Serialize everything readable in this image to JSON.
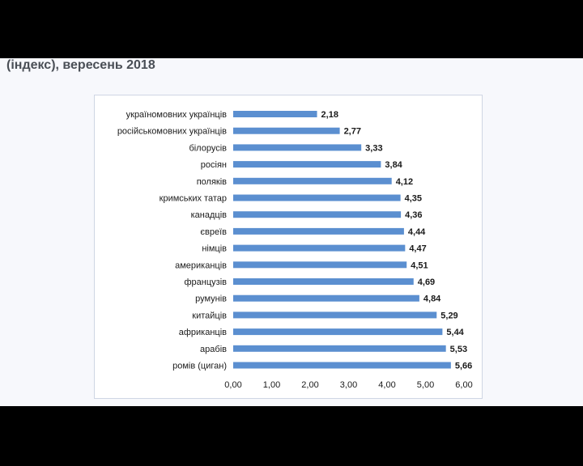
{
  "heading": "(індекс), вересень 2018",
  "colors": {
    "bar": "#5b8fd0",
    "background": "#f7f8fc",
    "letterbox": "#000000"
  },
  "chart_data": {
    "type": "bar",
    "orientation": "horizontal",
    "categories": [
      "україномовних українців",
      "російськомовних українців",
      "білорусів",
      "росіян",
      "поляків",
      "кримських татар",
      "канадців",
      "євреїв",
      "німців",
      "американців",
      "французів",
      "румунів",
      "китайців",
      "африканців",
      "арабів",
      "ромів (циган)"
    ],
    "values": [
      2.18,
      2.77,
      3.33,
      3.84,
      4.12,
      4.35,
      4.36,
      4.44,
      4.47,
      4.51,
      4.69,
      4.84,
      5.29,
      5.44,
      5.53,
      5.66
    ],
    "value_labels": [
      "2,18",
      "2,77",
      "3,33",
      "3,84",
      "4,12",
      "4,35",
      "4,36",
      "4,44",
      "4,47",
      "4,51",
      "4,69",
      "4,84",
      "5,29",
      "5,44",
      "5,53",
      "5,66"
    ],
    "xticks": [
      0,
      1,
      2,
      3,
      4,
      5,
      6
    ],
    "xtick_labels": [
      "0,00",
      "1,00",
      "2,00",
      "3,00",
      "4,00",
      "5,00",
      "6,00"
    ],
    "xlim": [
      0,
      6
    ],
    "grid": false,
    "legend": "none"
  }
}
